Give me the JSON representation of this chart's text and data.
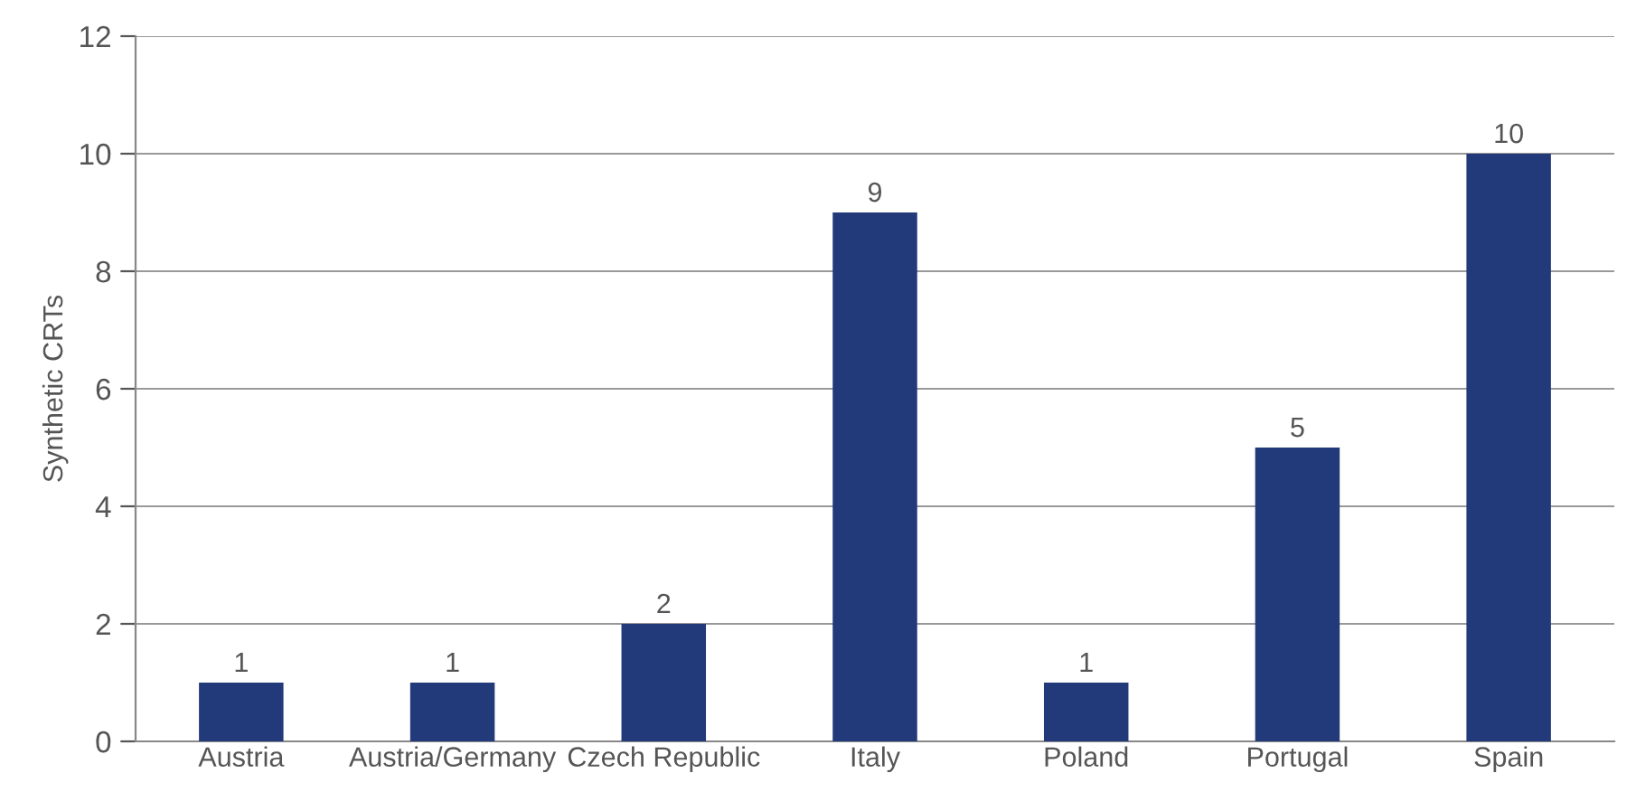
{
  "chart_data": {
    "type": "bar",
    "ylabel": "Synthetic CRTs",
    "categories": [
      "Austria",
      "Austria/Germany",
      "Czech Republic",
      "Italy",
      "Poland",
      "Portugal",
      "Spain"
    ],
    "values": [
      1,
      1,
      2,
      9,
      1,
      5,
      10
    ],
    "color": "#22397a",
    "ylim": [
      0,
      12
    ],
    "yticks": [
      0,
      2,
      4,
      6,
      8,
      10,
      12
    ],
    "grid": "y",
    "data_labels": true,
    "legend": false
  }
}
